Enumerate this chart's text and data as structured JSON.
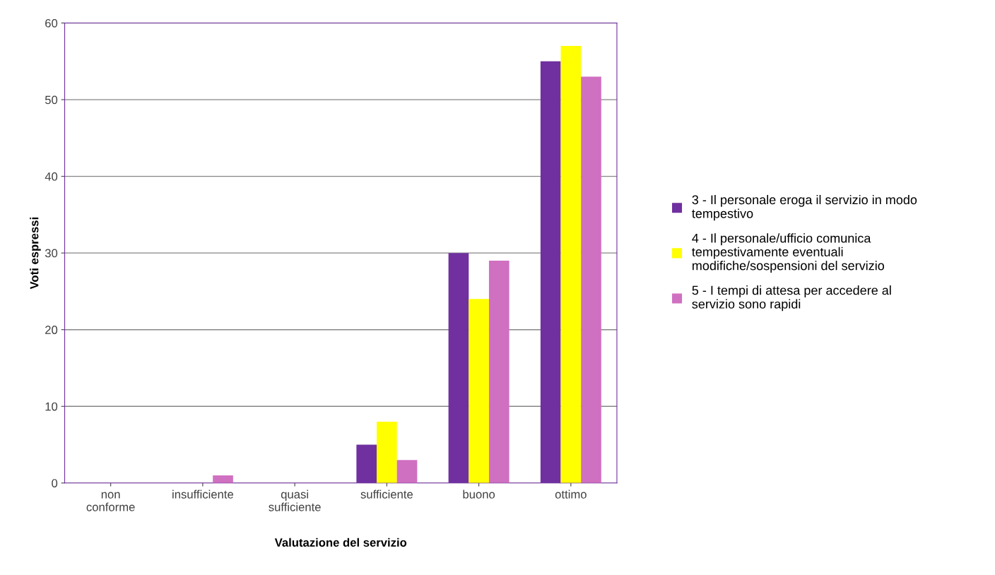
{
  "chart_data": {
    "type": "bar",
    "xlabel": "Valutazione del servizio",
    "ylabel": "Voti espressi",
    "categories": [
      "non\nconforme",
      "insufficiente",
      "quasi\nsufficiente",
      "sufficiente",
      "buono",
      "ottimo"
    ],
    "series": [
      {
        "name": "3 - Il personale eroga il servizio in modo tempestivo",
        "color": "#7030a0",
        "values": [
          0,
          0,
          0,
          5,
          30,
          55
        ]
      },
      {
        "name": "4 - Il personale/ufficio comunica tempestivamente eventuali modifiche/sospensioni del servizio",
        "color": "#ffff00",
        "values": [
          0,
          0,
          0,
          8,
          24,
          57
        ]
      },
      {
        "name": "5 - I tempi di attesa per accedere al servizio sono rapidi",
        "color": "#d070c0",
        "values": [
          0,
          1,
          0,
          3,
          29,
          53
        ]
      }
    ],
    "ylim": [
      0,
      60
    ],
    "yticks": [
      0,
      10,
      20,
      30,
      40,
      50,
      60
    ],
    "grid": "y",
    "legend": "right"
  }
}
